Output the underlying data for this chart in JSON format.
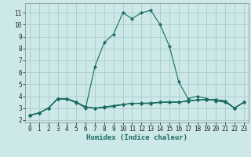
{
  "title": "",
  "xlabel": "Humidex (Indice chaleur)",
  "bg_color": "#cce8e8",
  "grid_color": "#aacccc",
  "line_color": "#1a6b60",
  "xlim": [
    -0.5,
    23.5
  ],
  "ylim": [
    1.8,
    11.8
  ],
  "yticks": [
    2,
    3,
    4,
    5,
    6,
    7,
    8,
    9,
    10,
    11
  ],
  "xticks": [
    0,
    1,
    2,
    3,
    4,
    5,
    6,
    7,
    8,
    9,
    10,
    11,
    12,
    13,
    14,
    15,
    16,
    17,
    18,
    19,
    20,
    21,
    22,
    23
  ],
  "x": [
    0,
    1,
    2,
    3,
    4,
    5,
    6,
    7,
    8,
    9,
    10,
    11,
    12,
    13,
    14,
    15,
    16,
    17,
    18,
    19,
    20,
    21,
    22,
    23
  ],
  "series1": [
    2.4,
    2.6,
    3.0,
    3.8,
    3.8,
    3.5,
    3.1,
    3.0,
    3.1,
    3.2,
    3.3,
    3.4,
    3.4,
    3.4,
    3.5,
    3.5,
    3.5,
    3.6,
    3.7,
    3.7,
    3.7,
    3.6,
    3.0,
    3.5
  ],
  "series2": [
    2.4,
    2.6,
    3.0,
    3.8,
    3.8,
    3.5,
    3.0,
    6.5,
    8.5,
    9.2,
    11.0,
    10.5,
    11.0,
    11.2,
    10.0,
    8.2,
    5.2,
    3.8,
    4.0,
    3.8,
    3.6,
    3.5,
    3.0,
    3.5
  ],
  "series3": [
    2.4,
    2.6,
    3.0,
    3.8,
    3.8,
    3.5,
    3.1,
    3.0,
    3.05,
    3.15,
    3.3,
    3.4,
    3.42,
    3.44,
    3.5,
    3.5,
    3.5,
    3.58,
    3.68,
    3.7,
    3.72,
    3.6,
    3.0,
    3.5
  ],
  "series4": [
    2.4,
    2.6,
    3.0,
    3.75,
    3.75,
    3.45,
    3.1,
    3.0,
    3.1,
    3.2,
    3.3,
    3.4,
    3.4,
    3.4,
    3.48,
    3.5,
    3.52,
    3.6,
    3.7,
    3.7,
    3.7,
    3.6,
    3.0,
    3.5
  ],
  "tick_fontsize": 5.5,
  "xlabel_fontsize": 6.5
}
